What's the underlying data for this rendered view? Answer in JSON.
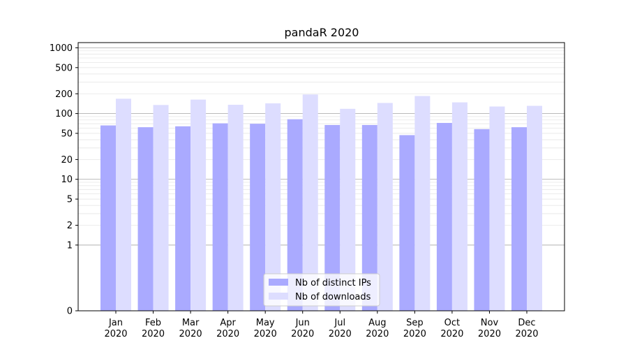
{
  "chart_data": {
    "type": "bar",
    "title": "pandaR 2020",
    "xlabel": "",
    "ylabel": "",
    "categories": [
      {
        "month": "Jan",
        "year": "2020"
      },
      {
        "month": "Feb",
        "year": "2020"
      },
      {
        "month": "Mar",
        "year": "2020"
      },
      {
        "month": "Apr",
        "year": "2020"
      },
      {
        "month": "May",
        "year": "2020"
      },
      {
        "month": "Jun",
        "year": "2020"
      },
      {
        "month": "Jul",
        "year": "2020"
      },
      {
        "month": "Aug",
        "year": "2020"
      },
      {
        "month": "Sep",
        "year": "2020"
      },
      {
        "month": "Oct",
        "year": "2020"
      },
      {
        "month": "Nov",
        "year": "2020"
      },
      {
        "month": "Dec",
        "year": "2020"
      }
    ],
    "series": [
      {
        "name": "Nb of distinct IPs",
        "color": "#aaaaff",
        "values": [
          66,
          62,
          64,
          71,
          70,
          82,
          67,
          67,
          47,
          72,
          58,
          62
        ]
      },
      {
        "name": "Nb of downloads",
        "color": "#ddddff",
        "values": [
          168,
          135,
          163,
          136,
          143,
          195,
          118,
          145,
          185,
          148,
          128,
          131
        ]
      }
    ],
    "yscale": "symlog",
    "ylim": [
      0,
      1200
    ],
    "yticks": [
      0,
      1,
      2,
      5,
      10,
      20,
      50,
      100,
      200,
      500,
      1000
    ],
    "ytick_labels": [
      "0",
      "1",
      "2",
      "5",
      "10",
      "20",
      "50",
      "100",
      "200",
      "500",
      "1000"
    ],
    "grid": true,
    "legend_position": "bottom-center"
  }
}
